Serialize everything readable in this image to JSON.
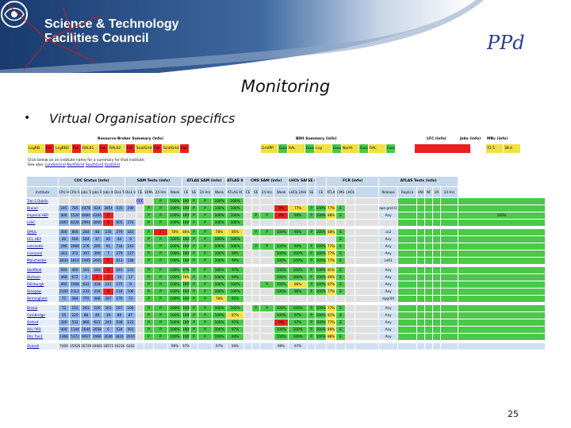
{
  "header": {
    "org_line1": "Science & Technology",
    "org_line2": "Facilities Council",
    "ppd_logo": "PPd",
    "banner_color": "#1b3f74"
  },
  "slide": {
    "title": "Monitoring",
    "bullet_char": "•",
    "bullet_text": "Virtual Organisation specifics",
    "page_number": "25"
  },
  "summary_bar": {
    "resource_broker_title": "Resource Broker Summary (Info)",
    "bdii_title": "BDII Summary (info)",
    "lfc_title": "LFC (info)",
    "jobs_title": "Jobs (info)",
    "mbv_title": "MBv (info)",
    "rb_cells": [
      "LcgRB",
      "Fail",
      "LcgRB2",
      "Fail",
      "RAL01",
      "Fail",
      "RAL02",
      "Fail",
      "ScotGrid",
      "Fail",
      "ScotGrid2",
      "Fail"
    ],
    "bdii_cells": [
      "GridPP",
      "Good",
      "RAL",
      "Good",
      "Lcg",
      "Good",
      "North",
      "Good",
      "RAL",
      "Good"
    ],
    "lfc_cells": [],
    "jobs_cells": [],
    "mbv_cells": [
      "72.5",
      "38.4"
    ]
  },
  "notes": {
    "line1": "Click below on an institute name for a summary for that institute.",
    "line2_prefix": "See also:",
    "links": [
      "LondonGrid",
      "NorthGrid",
      "SouthGrid",
      "ScotGrid"
    ]
  },
  "table": {
    "groups": [
      {
        "label": "",
        "span": 1
      },
      {
        "label": "COC Status (info)",
        "span": 6
      },
      {
        "label": "SAM Tests (info)",
        "span": 5
      },
      {
        "label": "ATLAS SAM (info)",
        "span": 4
      },
      {
        "label": "ATLAS IIC (info)",
        "span": 1
      },
      {
        "label": "CMS SAM (info)",
        "span": 4
      },
      {
        "label": "LHCb SAM (info)",
        "span": 1
      },
      {
        "label": "SE (info)",
        "span": 1
      },
      {
        "label": "",
        "span": 1
      },
      {
        "label": "FCR (info)",
        "span": 4
      },
      {
        "label": "ATLAS Tests (info)",
        "span": 6
      }
    ],
    "headers": [
      "Institute",
      "CPU Hour",
      "CPU Fair",
      "Jobs Tot",
      "Jobs Run",
      "Jobs Wait",
      "Disk Tot",
      "Disk Used",
      "CE",
      "SRMv2",
      "24 Hrs",
      "Week",
      "CE",
      "SE",
      "24 Hrs",
      "Week",
      "ATLAS IIC",
      "CE",
      "SE",
      "24 Hrs",
      "Week",
      "LHCb 24Hrs",
      "SE",
      "CE",
      "ATLAS",
      "CMS",
      "LHCb",
      "",
      "Release",
      "Replica",
      "HW",
      "NF",
      "UA",
      "24 Hrs"
    ],
    "rows": [
      {
        "name": "Tier-1 Dublin",
        "cells": [
          "",
          "",
          "",
          "",
          "",
          "",
          "",
          "CCC Status unknown",
          "",
          "P",
          "100%",
          "100%",
          "P",
          "P",
          "100%",
          "100%",
          "",
          "",
          "",
          "",
          "",
          "",
          "",
          "",
          "",
          "",
          "",
          "",
          "",
          "",
          "",
          "",
          "",
          ""
        ]
      },
      {
        "name": "Brunel",
        "cells": [
          "245",
          "785",
          "4478",
          "624",
          "3854",
          "435",
          "290",
          "",
          "P",
          "P",
          "100%",
          "100%",
          "P",
          "P",
          "100%",
          "100%",
          "",
          "",
          "",
          "0%",
          "77%",
          "P",
          "100%",
          "77%",
          "E",
          "",
          "",
          "ape-grid-03",
          "",
          "",
          "",
          "",
          "",
          ""
        ]
      },
      {
        "name": "Imperial HEP",
        "cells": [
          "400",
          "1520",
          "4084",
          "4204",
          "0",
          "",
          "",
          "",
          "P",
          "P",
          "100%",
          "100%",
          "P",
          "P",
          "100%",
          "100%",
          "",
          "P",
          "P",
          "0%",
          "94%",
          "P",
          "100%",
          "88%",
          "E",
          "",
          "",
          "Any",
          "",
          "",
          "",
          "",
          "",
          "100%"
        ]
      },
      {
        "name": "LeSC",
        "cells": [
          "2067",
          "8226",
          "2991",
          "3000",
          "1",
          "605",
          "274",
          "",
          "P",
          "P",
          "100%",
          "100%",
          "P",
          "P",
          "100%",
          "100%",
          "",
          "",
          "",
          "",
          "",
          "",
          "",
          "",
          "",
          "",
          "",
          "",
          "",
          "",
          "",
          "",
          "",
          ""
        ]
      },
      {
        "name": "QMUL",
        "cells": [
          "300",
          "800",
          "284",
          "48",
          "236",
          "279",
          "183",
          "",
          "P",
          "F",
          "78%",
          "86%",
          "P",
          "P",
          "78%",
          "85%",
          "",
          "P",
          "P",
          "100%",
          "94%",
          "P",
          "100%",
          "88%",
          "E",
          "",
          "",
          "ce2",
          "",
          "",
          "",
          "",
          "",
          ""
        ]
      },
      {
        "name": "UCL HEP",
        "cells": [
          "40",
          "160",
          "164",
          "37",
          "85",
          "44",
          "9",
          "",
          "P",
          "P",
          "100%",
          "100%",
          "P",
          "P",
          "100%",
          "100%",
          "",
          "",
          "",
          "",
          "",
          "",
          "",
          "",
          "E",
          "",
          "",
          "Any",
          "",
          "",
          "",
          "",
          "",
          ""
        ]
      },
      {
        "name": "Lancaster",
        "cells": [
          "296",
          "2968",
          "376",
          "285",
          "91",
          "734",
          "243",
          "",
          "P",
          "P",
          "100%",
          "100%",
          "P",
          "P",
          "100%",
          "100%",
          "",
          "P",
          "P",
          "100%",
          "94%",
          "P",
          "100%",
          "77%",
          "E",
          "",
          "",
          "Any",
          "",
          "",
          "",
          "",
          "",
          ""
        ]
      },
      {
        "name": "Liverpool",
        "cells": [
          "343",
          "372",
          "397",
          "390",
          "7",
          "279",
          "127",
          "",
          "P",
          "P",
          "100%",
          "100%",
          "P",
          "P",
          "100%",
          "90%",
          "",
          "",
          "",
          "100%",
          "100%",
          "P",
          "100%",
          "77%",
          "E",
          "",
          "",
          "Any",
          "",
          "",
          "",
          "",
          "",
          ""
        ]
      },
      {
        "name": "Manchester",
        "cells": [
          "3030",
          "1810",
          "1995",
          "2005",
          "0",
          "613",
          "188",
          "",
          "P",
          "P",
          "100%",
          "100%",
          "P",
          "P",
          "100%",
          "99%",
          "",
          "",
          "",
          "100%",
          "100%",
          "P",
          "100%",
          "77%",
          "E",
          "",
          "",
          "ce01",
          "",
          "",
          "",
          "",
          "",
          ""
        ]
      },
      {
        "name": "Sheffield",
        "cells": [
          "500",
          "400",
          "161",
          "163",
          "0",
          "291",
          "131",
          "",
          "P",
          "P",
          "100%",
          "97%",
          "P",
          "P",
          "100%",
          "97%",
          "",
          "",
          "",
          "100%",
          "100%",
          "P",
          "100%",
          "81%",
          "E",
          "",
          "",
          "Any",
          "",
          "",
          "",
          "",
          "",
          ""
        ]
      },
      {
        "name": "Durham",
        "cells": [
          "368",
          "672",
          "3",
          "1",
          "2",
          "34",
          "17",
          "",
          "P",
          "P",
          "100%",
          "78%",
          "P",
          "P",
          "100%",
          "94%",
          "",
          "",
          "",
          "100%",
          "100%",
          "P",
          "100%",
          "89%",
          "E",
          "",
          "",
          "Any",
          "",
          "",
          "",
          "",
          "",
          ""
        ]
      },
      {
        "name": "Edinburgh",
        "cells": [
          "492",
          "1968",
          "633",
          "418",
          "215",
          "175",
          "9",
          "",
          "P",
          "P",
          "100%",
          "100%",
          "P",
          "P",
          "100%",
          "100%",
          "",
          "",
          "P",
          "100%",
          "86%",
          "P",
          "100%",
          "87%",
          "E",
          "",
          "",
          "Any",
          "",
          "",
          "",
          "",
          "",
          ""
        ]
      },
      {
        "name": "Glasgow",
        "cells": [
          "2100",
          "2112",
          "233",
          "218",
          "0",
          "118",
          "106",
          "",
          "P",
          "P",
          "100%",
          "100%",
          "P",
          "P",
          "100%",
          "100%",
          "",
          "",
          "",
          "100%",
          "96%",
          "P",
          "100%",
          "77%",
          "E",
          "",
          "",
          "Any",
          "",
          "",
          "",
          "",
          "",
          ""
        ]
      },
      {
        "name": "Birmingham",
        "cells": [
          "72",
          "384",
          "755",
          "468",
          "287",
          "276",
          "73",
          "",
          "P",
          "P",
          "100%",
          "100%",
          "P",
          "P",
          "78%",
          "91%",
          "",
          "",
          "",
          "",
          "",
          "",
          "",
          "",
          "",
          "",
          "",
          "epgr04",
          "",
          "",
          "",
          "",
          "",
          ""
        ]
      },
      {
        "name": "Bristol",
        "cells": [
          "72",
          "152",
          "261",
          "100",
          "161",
          "167",
          "106",
          "",
          "P",
          "P",
          "100%",
          "100%",
          "P",
          "P",
          "100%",
          "100%",
          "",
          "P",
          "P",
          "100%",
          "100%",
          "P",
          "100%",
          "77%",
          "E",
          "",
          "",
          "Any",
          "",
          "",
          "",
          "",
          "",
          ""
        ]
      },
      {
        "name": "Cambridge",
        "cells": [
          "55",
          "220",
          "88",
          "49",
          "39",
          "89",
          "87",
          "",
          "P",
          "P",
          "100%",
          "100%",
          "P",
          "P",
          "100%",
          "87%",
          "",
          "",
          "",
          "100%",
          "97%",
          "P",
          "100%",
          "81%",
          "E",
          "",
          "",
          "Any",
          "",
          "",
          "",
          "",
          "",
          ""
        ]
      },
      {
        "name": "Oxford",
        "cells": [
          "326",
          "532",
          "866",
          "621",
          "245",
          "538",
          "123",
          "",
          "P",
          "P",
          "100%",
          "100%",
          "P",
          "P",
          "100%",
          "97%",
          "",
          "",
          "",
          "0%",
          "97%",
          "P",
          "100%",
          "77%",
          "E",
          "",
          "",
          "Any",
          "",
          "",
          "",
          "",
          "",
          ""
        ]
      },
      {
        "name": "RAL PPD",
        "cells": [
          "400",
          "1344",
          "2644",
          "2658",
          "6",
          "534",
          "501",
          "",
          "P",
          "P",
          "100%",
          "100%",
          "P",
          "P",
          "100%",
          "97%",
          "",
          "",
          "",
          "100%",
          "100%",
          "P",
          "100%",
          "89%",
          "E",
          "",
          "",
          "Any",
          "",
          "",
          "",
          "",
          "",
          ""
        ]
      },
      {
        "name": "RAL Tier1",
        "cells": [
          "1368",
          "5372",
          "8927",
          "2966",
          "3036",
          "3816",
          "2610",
          "",
          "P",
          "P",
          "100%",
          "100%",
          "P",
          "P",
          "100%",
          "94%",
          "",
          "",
          "",
          "100%",
          "100%",
          "P",
          "100%",
          "88%",
          "E",
          "",
          "",
          "Any",
          "",
          "",
          "",
          "",
          "",
          ""
        ]
      },
      {
        "name": "Overall",
        "cells": [
          "7469",
          "25926",
          "26749",
          "20683",
          "18573",
          "16236",
          "6202",
          "",
          "",
          "",
          "99%",
          "97%",
          "",
          "",
          "97%",
          "94%",
          "",
          "",
          "",
          "99%",
          "97%",
          "",
          "",
          "",
          "",
          "",
          "",
          "",
          "",
          "",
          "",
          "",
          "",
          ""
        ]
      }
    ],
    "colors": {
      "green": "#4bc84b",
      "red": "#e82020",
      "yellow": "#f0e040",
      "purple": "#a09ae8",
      "header_blue": "#c6d8ec"
    }
  }
}
